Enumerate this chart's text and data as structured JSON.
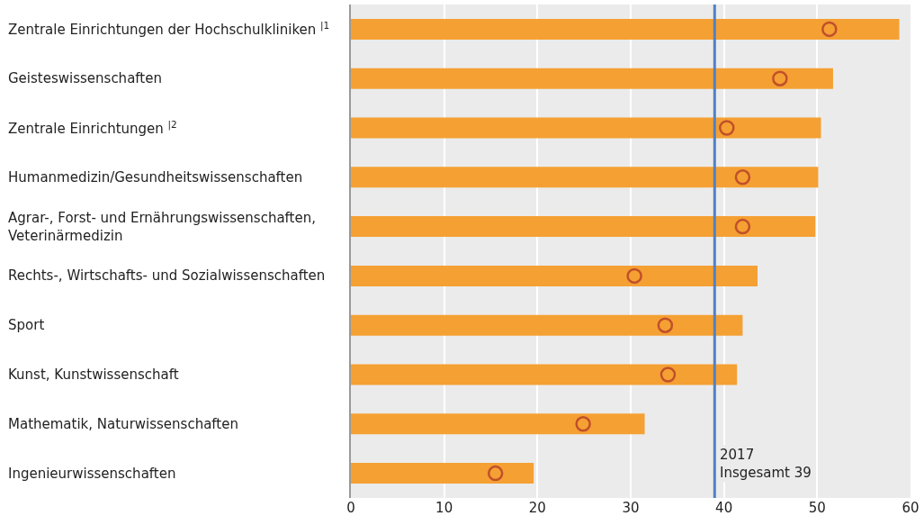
{
  "chart_data": {
    "type": "bar",
    "orientation": "horizontal",
    "categories": [
      "Zentrale Einrichtungen der Hochschulkliniken $^{|1}$",
      "Geisteswissenschaften",
      "Zentrale Einrichtungen $^{|2}$",
      "Humanmedizin/Gesundheitswissenschaften",
      "Agrar-, Forst- und Ernährungswissenschaften,\nVeterinärmedizin",
      "Rechts-, Wirtschafts- und Sozialwissenschaften",
      "Sport",
      "Kunst, Kunstwissenschaft",
      "Mathematik, Naturwissenschaften",
      "Ingenieurwissenschaften"
    ],
    "series": [
      {
        "color": "#f5a033",
        "values": [
          58.8,
          51.7,
          50.4,
          50.1,
          49.8,
          43.6,
          42.0,
          41.4,
          31.5,
          19.6
        ]
      },
      {
        "type": "scatter",
        "color": "#c0502a",
        "marker": "circle",
        "values": [
          51.3,
          46.0,
          40.3,
          42.0,
          42.0,
          30.4,
          33.7,
          34.0,
          24.9,
          15.5
        ]
      }
    ],
    "xlim": [
      0,
      60
    ],
    "xticks": [
      0,
      10,
      20,
      30,
      40,
      50,
      60
    ],
    "grid": "x",
    "ref_lines": [
      {
        "axis": "x",
        "value": 39,
        "label": "2017\nInsgesamt 39",
        "color": "#4f81c4"
      }
    ]
  }
}
